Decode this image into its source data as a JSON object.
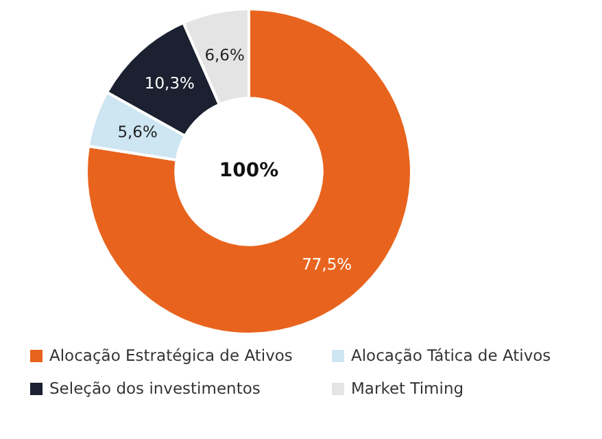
{
  "chart_data": {
    "type": "donut",
    "categories": [
      "Alocação Estratégica de Ativos",
      "Alocação Tática de Ativos",
      "Seleção dos investimentos",
      "Market Timing"
    ],
    "values": [
      77.5,
      5.6,
      10.3,
      6.6
    ],
    "colors": [
      "#e8641e",
      "#cde6f2",
      "#1b2130",
      "#e4e4e4"
    ],
    "value_labels": [
      "77,5%",
      "5,6%",
      "10,3%",
      "6,6%"
    ],
    "annotations": [
      "100%"
    ],
    "legend": "bottom"
  }
}
